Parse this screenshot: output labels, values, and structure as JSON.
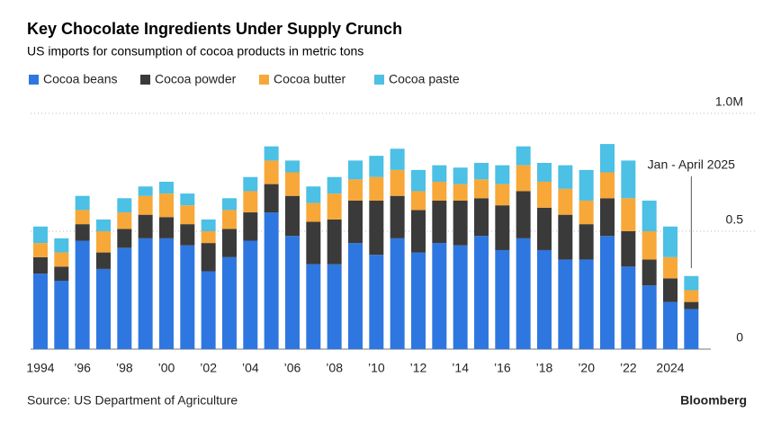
{
  "chart_data": {
    "type": "bar",
    "stacked": true,
    "title": "Key Chocolate Ingredients Under Supply Crunch",
    "subtitle": "US imports for consumption of cocoa products in metric tons",
    "source": "Source: US Department of Agriculture",
    "brand": "Bloomberg",
    "annotation": "Jan - April 2025",
    "categories": [
      "1994",
      null,
      "’96",
      null,
      "’98",
      null,
      "’00",
      null,
      "’02",
      null,
      "’04",
      null,
      "’06",
      null,
      "’08",
      null,
      "’10",
      null,
      "’12",
      null,
      "’14",
      null,
      "’16",
      null,
      "’18",
      null,
      "’20",
      null,
      "’22",
      null,
      "2024",
      null
    ],
    "series": [
      {
        "name": "Cocoa beans",
        "color": "#2e77e0",
        "values": [
          0.32,
          0.29,
          0.46,
          0.34,
          0.43,
          0.47,
          0.47,
          0.44,
          0.33,
          0.39,
          0.46,
          0.58,
          0.48,
          0.36,
          0.36,
          0.45,
          0.4,
          0.47,
          0.41,
          0.45,
          0.44,
          0.48,
          0.42,
          0.47,
          0.42,
          0.38,
          0.38,
          0.48,
          0.35,
          0.27,
          0.2,
          0.17
        ]
      },
      {
        "name": "Cocoa powder",
        "color": "#3a3a3a",
        "values": [
          0.07,
          0.06,
          0.07,
          0.07,
          0.08,
          0.1,
          0.09,
          0.09,
          0.12,
          0.12,
          0.12,
          0.12,
          0.17,
          0.18,
          0.19,
          0.18,
          0.23,
          0.18,
          0.18,
          0.18,
          0.19,
          0.16,
          0.19,
          0.2,
          0.18,
          0.19,
          0.15,
          0.16,
          0.15,
          0.11,
          0.1,
          0.03
        ]
      },
      {
        "name": "Cocoa butter",
        "color": "#f7a838",
        "values": [
          0.06,
          0.06,
          0.06,
          0.09,
          0.07,
          0.08,
          0.1,
          0.08,
          0.05,
          0.08,
          0.09,
          0.1,
          0.1,
          0.08,
          0.11,
          0.09,
          0.1,
          0.11,
          0.08,
          0.08,
          0.07,
          0.08,
          0.09,
          0.11,
          0.11,
          0.11,
          0.1,
          0.11,
          0.14,
          0.12,
          0.09,
          0.05
        ]
      },
      {
        "name": "Cocoa paste",
        "color": "#4cc0e5",
        "values": [
          0.07,
          0.06,
          0.06,
          0.05,
          0.06,
          0.04,
          0.05,
          0.05,
          0.05,
          0.05,
          0.06,
          0.06,
          0.05,
          0.07,
          0.07,
          0.08,
          0.09,
          0.09,
          0.09,
          0.07,
          0.07,
          0.07,
          0.08,
          0.08,
          0.08,
          0.1,
          0.13,
          0.12,
          0.16,
          0.13,
          0.13,
          0.06
        ]
      }
    ],
    "ylim": [
      0,
      1
    ],
    "yticks": [
      0,
      0.5,
      {
        "value": 1,
        "label": "1.0M"
      }
    ],
    "grid": true
  }
}
